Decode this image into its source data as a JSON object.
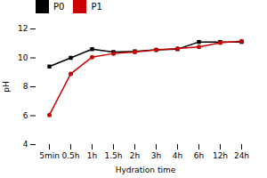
{
  "chart_data": {
    "type": "line",
    "categories": [
      "5min",
      "0.5h",
      "1h",
      "1.5h",
      "2h",
      "3h",
      "4h",
      "6h",
      "12h",
      "24h"
    ],
    "series": [
      {
        "name": "P0",
        "color": "#000000",
        "marker": "square",
        "values": [
          9.4,
          10.0,
          10.6,
          10.4,
          10.45,
          10.55,
          10.6,
          11.1,
          11.1,
          11.1
        ]
      },
      {
        "name": "P1",
        "color": "#cc0000",
        "marker": "circle",
        "values": [
          6.05,
          8.9,
          10.05,
          10.3,
          10.4,
          10.55,
          10.65,
          10.75,
          11.05,
          11.15
        ]
      }
    ],
    "xlabel": "Hydration time",
    "ylabel": "pH",
    "ylim": [
      4,
      12
    ],
    "yticks": [
      4,
      6,
      8,
      10,
      12
    ],
    "legend": "upper left",
    "grid": false
  }
}
